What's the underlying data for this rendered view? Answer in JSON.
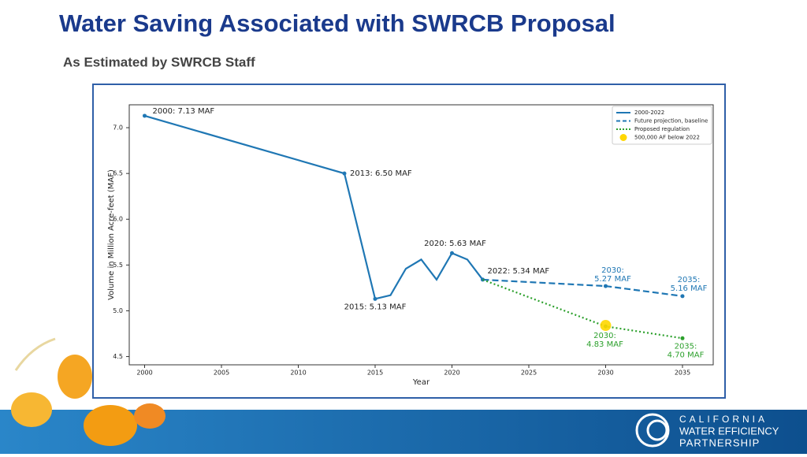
{
  "header": {
    "title": "Water Saving Associated with SWRCB Proposal",
    "subtitle": "As Estimated by SWRCB Staff"
  },
  "chart_data": {
    "type": "line",
    "xlabel": "Year",
    "ylabel": "Volume in Million Acre-feet (MAF)",
    "xlim": [
      1999,
      2037
    ],
    "xticks": [
      2000,
      2005,
      2010,
      2015,
      2020,
      2025,
      2030,
      2035
    ],
    "ylim": [
      4.41,
      7.25
    ],
    "yticks": [
      4.5,
      {
        "value": 5,
        "label": "5.0"
      },
      5.5,
      {
        "value": 6,
        "label": "6.0"
      },
      6.5,
      {
        "value": 7,
        "label": "7.0"
      }
    ],
    "legend": "upper right",
    "series": [
      {
        "name": "2000-2022",
        "color": "#1f77b4",
        "style": "solid",
        "x": [
          2000,
          2013,
          2015,
          2016,
          2017,
          2018,
          2019,
          2020,
          2021,
          2022
        ],
        "values": [
          7.13,
          6.5,
          5.13,
          5.17,
          5.46,
          5.56,
          5.34,
          5.63,
          5.56,
          5.34
        ],
        "value_labels": [
          "2000: 7.13 MAF",
          "2013: 6.50 MAF",
          "2015: 5.13 MAF",
          null,
          null,
          null,
          null,
          "2020: 5.63 MAF",
          null,
          "2022: 5.34 MAF"
        ]
      },
      {
        "name": "Future projection, baseline",
        "color": "#1f77b4",
        "style": "dashed",
        "x": [
          2022,
          2030,
          2035
        ],
        "values": [
          5.34,
          5.27,
          5.16
        ],
        "value_labels": [
          null,
          "2030:\n5.27 MAF",
          "2035:\n5.16 MAF"
        ]
      },
      {
        "name": "Proposed regulation",
        "color": "#2ca02c",
        "style": "dotted",
        "x": [
          2022,
          2030,
          2035
        ],
        "values": [
          5.34,
          4.83,
          4.7
        ],
        "value_labels": [
          null,
          "2030:\n4.83 MAF",
          "2035:\n4.70 MAF"
        ]
      },
      {
        "name": "500,000 AF below 2022",
        "color": "#ffd700",
        "style": "marker",
        "x": [
          2030
        ],
        "values": [
          4.84
        ]
      }
    ]
  },
  "footer": {
    "logo": [
      "CALIFORNIA",
      "WATER EFFICIENCY",
      "PARTNERSHIP"
    ]
  }
}
